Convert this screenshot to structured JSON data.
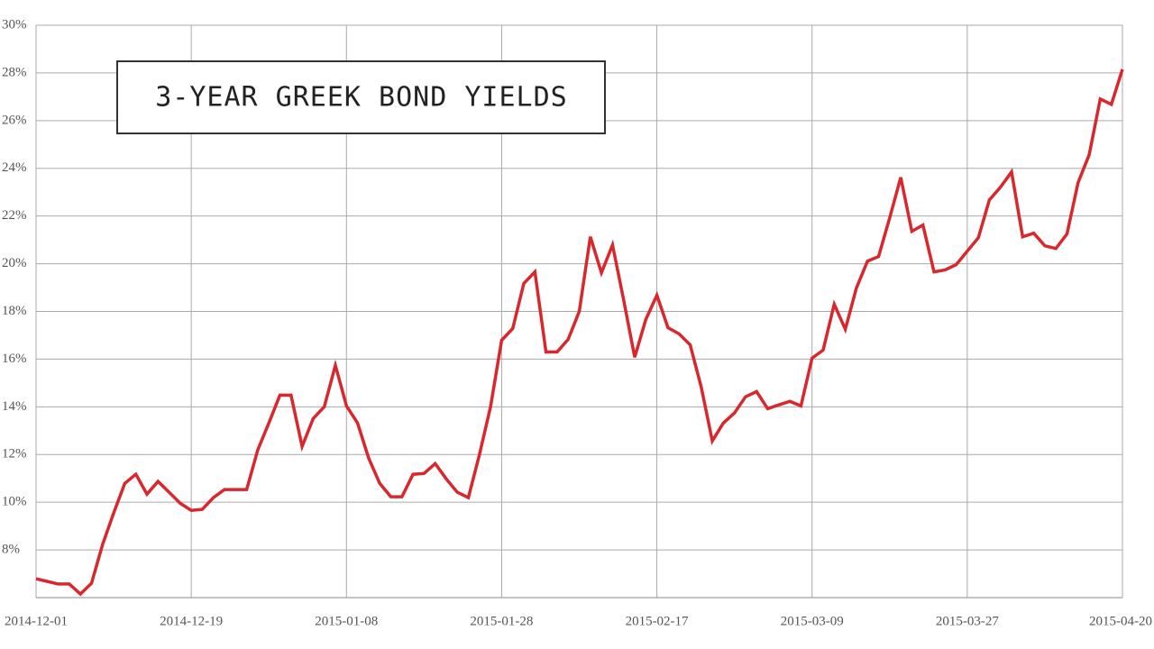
{
  "chart_data": {
    "type": "line",
    "title": "3-YEAR GREEK BOND YIELDS",
    "categories": [
      "2014-12-01",
      null,
      null,
      null,
      null,
      null,
      null,
      null,
      null,
      null,
      null,
      null,
      null,
      null,
      "2014-12-19",
      null,
      null,
      null,
      null,
      null,
      null,
      null,
      null,
      null,
      null,
      null,
      null,
      null,
      "2015-01-08",
      null,
      null,
      null,
      null,
      null,
      null,
      null,
      null,
      null,
      null,
      null,
      null,
      null,
      "2015-01-28",
      null,
      null,
      null,
      null,
      null,
      null,
      null,
      null,
      null,
      null,
      null,
      null,
      null,
      "2015-02-17",
      null,
      null,
      null,
      null,
      null,
      null,
      null,
      null,
      null,
      null,
      null,
      null,
      null,
      "2015-03-09",
      null,
      null,
      null,
      null,
      null,
      null,
      null,
      null,
      null,
      null,
      null,
      null,
      null,
      "2015-03-27",
      null,
      null,
      null,
      null,
      null,
      null,
      null,
      null,
      null,
      null,
      null,
      null,
      null,
      "2015-04-20"
    ],
    "values": [
      6.79,
      6.68,
      6.57,
      6.57,
      6.15,
      6.6,
      8.23,
      9.55,
      10.79,
      11.17,
      10.34,
      10.87,
      10.42,
      9.96,
      9.66,
      9.7,
      10.19,
      10.53,
      10.53,
      10.53,
      12.19,
      13.32,
      14.49,
      14.49,
      12.34,
      13.51,
      14.0,
      15.74,
      14.04,
      13.32,
      11.85,
      10.79,
      10.23,
      10.23,
      11.17,
      11.21,
      11.62,
      10.98,
      10.42,
      10.19,
      12.0,
      14.0,
      16.79,
      17.28,
      19.17,
      19.66,
      16.3,
      16.3,
      16.83,
      18.0,
      21.13,
      19.62,
      20.79,
      18.49,
      16.08,
      17.66,
      18.68,
      17.32,
      17.06,
      16.6,
      14.83,
      12.57,
      13.32,
      13.74,
      14.42,
      14.64,
      13.92,
      14.08,
      14.23,
      14.04,
      16.04,
      16.38,
      18.3,
      17.25,
      18.98,
      20.11,
      20.3,
      21.92,
      23.62,
      21.36,
      21.62,
      19.66,
      19.74,
      19.96,
      20.53,
      21.09,
      22.68,
      23.21,
      23.85,
      21.13,
      21.28,
      20.75,
      20.64,
      21.25,
      23.4,
      24.57,
      26.91,
      26.68,
      28.15
    ],
    "color": "#d9272e",
    "ylim": [
      6,
      30
    ],
    "yticks": [
      {
        "value": 8,
        "label": "8%"
      },
      {
        "value": 10,
        "label": "10%"
      },
      {
        "value": 12,
        "label": "12%"
      },
      {
        "value": 14,
        "label": "14%"
      },
      {
        "value": 16,
        "label": "16%"
      },
      {
        "value": 18,
        "label": "18%"
      },
      {
        "value": 20,
        "label": "20%"
      },
      {
        "value": 22,
        "label": "22%"
      },
      {
        "value": 24,
        "label": "24%"
      },
      {
        "value": 26,
        "label": "26%"
      },
      {
        "value": 28,
        "label": "28%"
      },
      {
        "value": 30,
        "label": "30%"
      }
    ],
    "grid": true
  }
}
